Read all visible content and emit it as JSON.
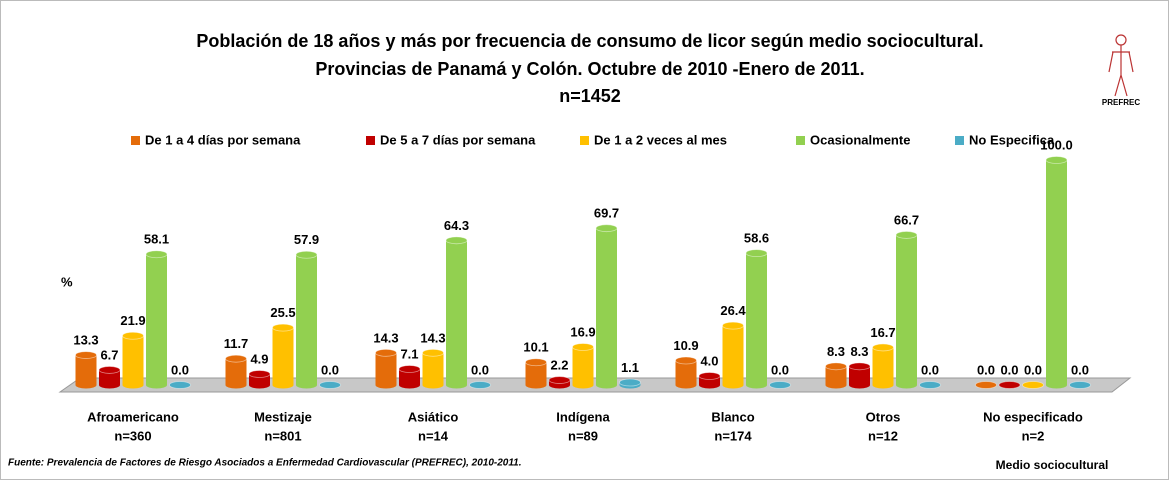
{
  "chart_data": {
    "type": "bar",
    "title": [
      "Población de 18 años y más por frecuencia de consumo de licor según medio sociocultural.",
      "Provincias de Panamá y Colón. Octubre de 2010 -Enero de 2011.",
      "n=1452"
    ],
    "y_label": "%",
    "x_label": "Medio sociocultural",
    "source": "Fuente: Prevalencia de Factores de Riesgo Asociados a Enfermedad Cardiovascular (PREFREC), 2010-2011.",
    "logo_text": "PREFREC",
    "categories": [
      [
        "Afroamericano",
        "n=360"
      ],
      [
        "Mestizaje",
        "n=801"
      ],
      [
        "Asiático",
        "n=14"
      ],
      [
        "Indígena",
        "n=89"
      ],
      [
        "Blanco",
        "n=174"
      ],
      [
        "Otros",
        "n=12"
      ],
      [
        "No especificado",
        "n=2"
      ]
    ],
    "ylim": [
      0,
      100
    ],
    "legend": "top",
    "series": [
      {
        "name": "De 1 a 4 días por semana",
        "color": "#e46c0a",
        "values": [
          13.3,
          11.7,
          14.3,
          10.1,
          10.9,
          8.3,
          0
        ],
        "value_labels": [
          "13.3",
          "11.7",
          "14.3",
          "10.1",
          "10.9",
          "8.3",
          "0.0"
        ]
      },
      {
        "name": "De 5 a 7 días por semana",
        "color": "#c00000",
        "values": [
          6.7,
          4.9,
          7.1,
          2.2,
          4.0,
          8.3,
          0
        ],
        "value_labels": [
          "6.7",
          "4.9",
          "7.1",
          "2.2",
          "4.0",
          "8.3",
          "0.0"
        ]
      },
      {
        "name": "De 1 a 2 veces al mes",
        "color": "#ffc000",
        "values": [
          21.9,
          25.5,
          14.3,
          16.9,
          26.4,
          16.7,
          0
        ],
        "value_labels": [
          "21.9",
          "25.5",
          "14.3",
          "16.9",
          "26.4",
          "16.7",
          "0.0"
        ]
      },
      {
        "name": "Ocasionalmente",
        "color": "#92d050",
        "values": [
          58.1,
          57.9,
          64.3,
          69.7,
          58.6,
          66.7,
          100
        ],
        "value_labels": [
          "58.1",
          "57.9",
          "64.3",
          "69.7",
          "58.6",
          "66.7",
          "100.0"
        ]
      },
      {
        "name": "No Especifica",
        "color": "#4bacc6",
        "values": [
          0,
          0,
          0,
          1.1,
          0,
          0,
          0
        ],
        "value_labels": [
          "0.0",
          "0.0",
          "0.0",
          "1.1",
          "0.0",
          "0.0",
          "0.0"
        ]
      }
    ]
  }
}
